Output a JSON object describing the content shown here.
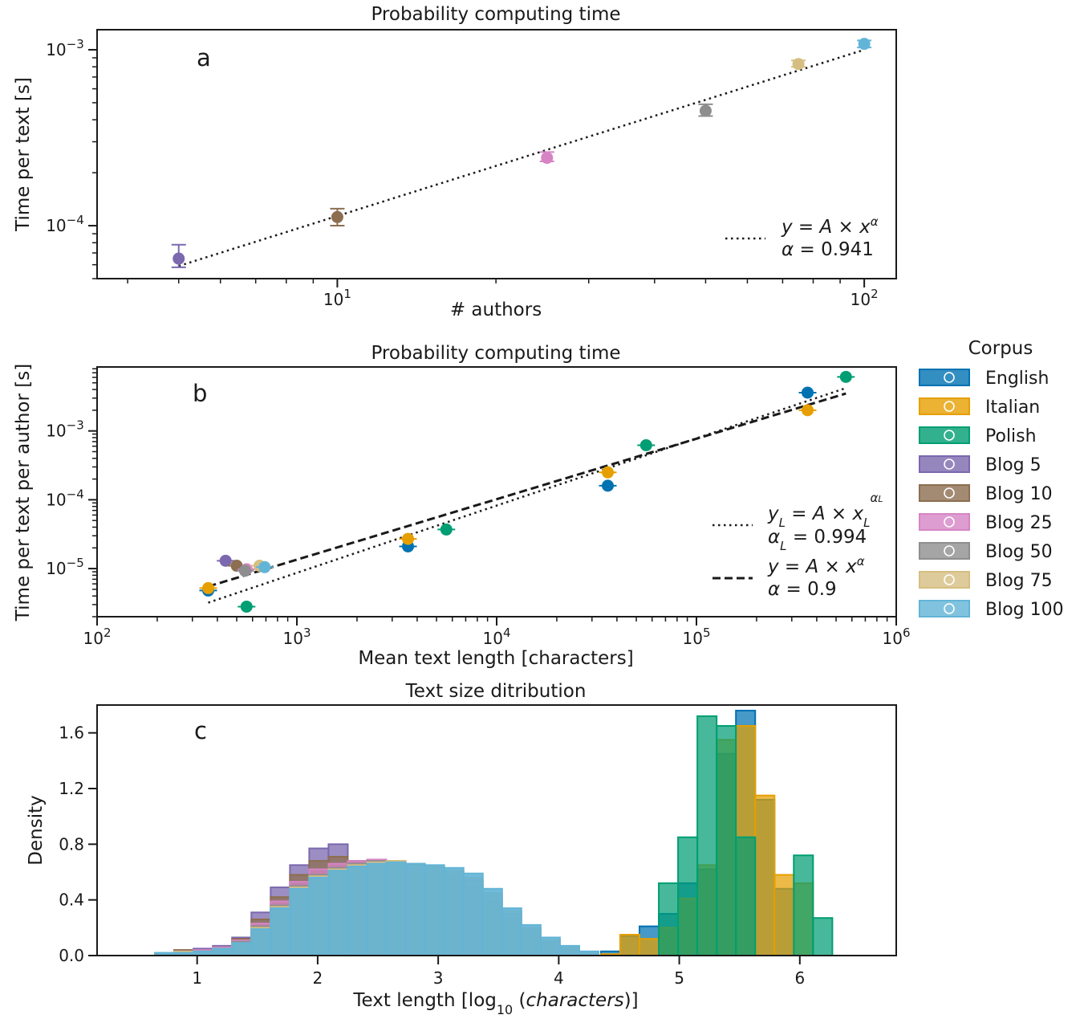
{
  "colors": {
    "English": "#0072b2",
    "Italian": "#e69f00",
    "Polish": "#009e73",
    "Blog 5": "#7b68ae",
    "Blog 10": "#8c6e50",
    "Blog 25": "#d684c4",
    "Blog 50": "#8e8e8e",
    "Blog 75": "#d6be82",
    "Blog 100": "#62b4d6"
  },
  "legend": {
    "title": "Corpus",
    "entries": [
      "English",
      "Italian",
      "Polish",
      "Blog 5",
      "Blog 10",
      "Blog 25",
      "Blog 50",
      "Blog 75",
      "Blog 100"
    ]
  },
  "chart_data": [
    {
      "type": "scatter",
      "panel_label": "a",
      "title": "Probability computing time",
      "xlabel": "# authors",
      "ylabel": "Time per text [s]",
      "xscale": "log",
      "yscale": "log",
      "xlim": [
        3.5,
        115
      ],
      "ylim": [
        5e-05,
        0.0013
      ],
      "x_ticks": [
        "10^1",
        "10^2"
      ],
      "y_ticks": [
        "10^-4",
        "10^-3"
      ],
      "points": [
        {
          "corpus": "Blog 5",
          "x": 5,
          "y": 6.5e-05,
          "ylow": 5.8e-05,
          "yhigh": 7.8e-05
        },
        {
          "corpus": "Blog 10",
          "x": 10,
          "y": 0.000112,
          "ylow": 0.0001,
          "yhigh": 0.000125
        },
        {
          "corpus": "Blog 25",
          "x": 25,
          "y": 0.000243,
          "ylow": 0.000232,
          "yhigh": 0.000262
        },
        {
          "corpus": "Blog 50",
          "x": 50,
          "y": 0.00045,
          "ylow": 0.00042,
          "yhigh": 0.00049
        },
        {
          "corpus": "Blog 75",
          "x": 75,
          "y": 0.00083,
          "ylow": 0.0008,
          "yhigh": 0.00087
        },
        {
          "corpus": "Blog 100",
          "x": 100,
          "y": 0.00108,
          "ylow": 0.00103,
          "yhigh": 0.00113
        }
      ],
      "fits": [
        {
          "style": "dotted",
          "x": [
            5,
            100
          ],
          "y": [
            5.9e-05,
            0.001
          ],
          "label_lines": [
            "y = A × x^α",
            "α = 0.941"
          ]
        }
      ]
    },
    {
      "type": "scatter",
      "panel_label": "b",
      "title": "Probability computing time",
      "xlabel": "Mean text length [characters]",
      "ylabel": "Time per text per author [s]",
      "xscale": "log",
      "yscale": "log",
      "xlim": [
        100,
        1000000
      ],
      "ylim": [
        2e-06,
        0.0085
      ],
      "x_ticks": [
        "10^2",
        "10^3",
        "10^4",
        "10^5",
        "10^6"
      ],
      "y_ticks": [
        "10^-5",
        "10^-4",
        "10^-3"
      ],
      "points": [
        {
          "corpus": "English",
          "x": 360,
          "y": 4.8e-06
        },
        {
          "corpus": "English",
          "x": 3600,
          "y": 2.1e-05
        },
        {
          "corpus": "English",
          "x": 36000,
          "y": 0.00016
        },
        {
          "corpus": "English",
          "x": 360000,
          "y": 0.0036
        },
        {
          "corpus": "Italian",
          "x": 360,
          "y": 5.2e-06
        },
        {
          "corpus": "Italian",
          "x": 3600,
          "y": 2.7e-05
        },
        {
          "corpus": "Italian",
          "x": 36000,
          "y": 0.00025
        },
        {
          "corpus": "Italian",
          "x": 360000,
          "y": 0.002
        },
        {
          "corpus": "Polish",
          "x": 560,
          "y": 2.8e-06
        },
        {
          "corpus": "Polish",
          "x": 5600,
          "y": 3.7e-05
        },
        {
          "corpus": "Polish",
          "x": 56000,
          "y": 0.00062
        },
        {
          "corpus": "Polish",
          "x": 560000,
          "y": 0.0061
        },
        {
          "corpus": "Blog 5",
          "x": 440,
          "y": 1.3e-05
        },
        {
          "corpus": "Blog 10",
          "x": 500,
          "y": 1.1e-05
        },
        {
          "corpus": "Blog 25",
          "x": 560,
          "y": 9.8e-06
        },
        {
          "corpus": "Blog 50",
          "x": 550,
          "y": 9.3e-06
        },
        {
          "corpus": "Blog 75",
          "x": 650,
          "y": 1.1e-05
        },
        {
          "corpus": "Blog 100",
          "x": 690,
          "y": 1.05e-05
        }
      ],
      "fits": [
        {
          "style": "dotted",
          "x": [
            360,
            560000
          ],
          "y": [
            3.2e-06,
            0.0042
          ],
          "label_lines": [
            "y_L = A × x_L^α_L",
            "α_L = 0.994"
          ]
        },
        {
          "style": "dashed",
          "x": [
            360,
            560000
          ],
          "y": [
            5.5e-06,
            0.0035
          ],
          "label_lines": [
            "y = A × x^α",
            "α = 0.9"
          ]
        }
      ]
    },
    {
      "type": "histogram",
      "panel_label": "c",
      "title": "Text size ditribution",
      "xlabel": "Text length [log10 (characters)]",
      "ylabel": "Density",
      "xlim": [
        0.17,
        6.8
      ],
      "ylim": [
        0,
        1.8
      ],
      "x_ticks": [
        1,
        2,
        3,
        4,
        5,
        6
      ],
      "y_ticks": [
        0.0,
        0.4,
        0.8,
        1.2,
        1.6
      ],
      "bin_width": 0.16,
      "series": [
        {
          "name": "Blog 5",
          "start": 0.65,
          "values": [
            0.02,
            0.04,
            0.05,
            0.07,
            0.13,
            0.31,
            0.49,
            0.65,
            0.77,
            0.8,
            0.68,
            0.62,
            0.61,
            0.56,
            0.49,
            0.43,
            0.38,
            0.28,
            0.19,
            0.13,
            0.08,
            0.05,
            0.02
          ]
        },
        {
          "name": "Blog 10",
          "start": 0.65,
          "values": [
            0.02,
            0.04,
            0.04,
            0.06,
            0.12,
            0.26,
            0.42,
            0.58,
            0.68,
            0.71,
            0.68,
            0.66,
            0.63,
            0.58,
            0.55,
            0.52,
            0.44,
            0.33,
            0.23,
            0.15,
            0.09,
            0.05,
            0.02
          ]
        },
        {
          "name": "Blog 25",
          "start": 0.65,
          "values": [
            0.02,
            0.03,
            0.04,
            0.06,
            0.11,
            0.23,
            0.39,
            0.53,
            0.62,
            0.66,
            0.68,
            0.69,
            0.67,
            0.63,
            0.6,
            0.57,
            0.5,
            0.39,
            0.27,
            0.17,
            0.1,
            0.05,
            0.02
          ]
        },
        {
          "name": "Blog 50",
          "start": 0.65,
          "values": [
            0.02,
            0.03,
            0.03,
            0.05,
            0.1,
            0.21,
            0.36,
            0.5,
            0.58,
            0.63,
            0.66,
            0.68,
            0.68,
            0.65,
            0.63,
            0.6,
            0.54,
            0.43,
            0.3,
            0.19,
            0.11,
            0.06,
            0.02
          ]
        },
        {
          "name": "Blog 75",
          "start": 0.65,
          "values": [
            0.02,
            0.03,
            0.03,
            0.05,
            0.09,
            0.2,
            0.35,
            0.49,
            0.57,
            0.62,
            0.65,
            0.67,
            0.68,
            0.66,
            0.64,
            0.61,
            0.56,
            0.45,
            0.32,
            0.2,
            0.11,
            0.06,
            0.02
          ]
        },
        {
          "name": "Blog 100",
          "start": 0.65,
          "values": [
            0.02,
            0.02,
            0.03,
            0.05,
            0.09,
            0.19,
            0.34,
            0.48,
            0.56,
            0.61,
            0.64,
            0.66,
            0.67,
            0.66,
            0.65,
            0.63,
            0.59,
            0.48,
            0.34,
            0.22,
            0.13,
            0.07,
            0.03
          ]
        },
        {
          "name": "English",
          "start": 4.35,
          "values": [
            0.03,
            0.14,
            0.21,
            0.3,
            0.52,
            0.62,
            1.45,
            1.76,
            1.12,
            0.48,
            0.0,
            0.0
          ]
        },
        {
          "name": "Italian",
          "start": 4.35,
          "values": [
            0.01,
            0.15,
            0.12,
            0.2,
            0.41,
            0.65,
            1.55,
            1.65,
            1.15,
            0.58,
            0.52,
            0.0
          ]
        },
        {
          "name": "Polish",
          "start": 4.35,
          "values": [
            0.0,
            0.0,
            0.0,
            0.0,
            0.0,
            0.52,
            0.85,
            1.72,
            1.65,
            0.85,
            0.0,
            0.0,
            0.72,
            0.27
          ],
          "start_override": 4.03
        }
      ]
    }
  ]
}
